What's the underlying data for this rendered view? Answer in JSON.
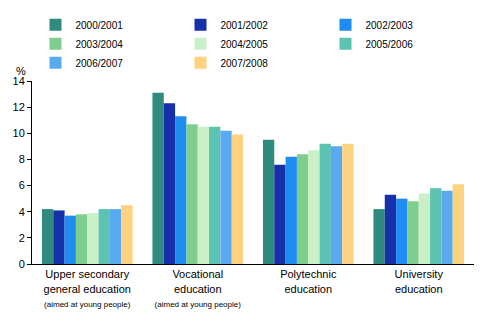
{
  "chart_data": {
    "type": "bar",
    "ylabel": "%",
    "categories": [
      "Upper secondary\ngeneral education\n(aimed at young people)",
      "Vocational\neducation\n(aimed at young people)",
      "Polytechnic\neducation",
      "University\neducation"
    ],
    "series": [
      {
        "name": "2000/2001",
        "color": "#2e8b7d",
        "values": [
          4.2,
          13.1,
          9.5,
          4.2
        ]
      },
      {
        "name": "2001/2002",
        "color": "#1530a8",
        "values": [
          4.1,
          12.3,
          7.6,
          5.3
        ]
      },
      {
        "name": "2002/2003",
        "color": "#1e8cf0",
        "values": [
          3.7,
          11.3,
          8.2,
          5.0
        ]
      },
      {
        "name": "2003/2004",
        "color": "#7fce8e",
        "values": [
          3.8,
          10.7,
          8.4,
          4.8
        ]
      },
      {
        "name": "2004/2005",
        "color": "#c9f0c6",
        "values": [
          3.9,
          10.5,
          8.7,
          5.4
        ]
      },
      {
        "name": "2005/2006",
        "color": "#5cc2b2",
        "values": [
          4.2,
          10.5,
          9.2,
          5.8
        ]
      },
      {
        "name": "2006/2007",
        "color": "#5aaaf0",
        "values": [
          4.2,
          10.2,
          9.0,
          5.6
        ]
      },
      {
        "name": "2007/2008",
        "color": "#ffd27f",
        "values": [
          4.5,
          9.9,
          9.2,
          6.1
        ]
      }
    ],
    "ylim": [
      0,
      14
    ],
    "yticks": [
      0,
      2,
      4,
      6,
      8,
      10,
      12,
      14
    ],
    "grid": false,
    "legend": "top"
  }
}
